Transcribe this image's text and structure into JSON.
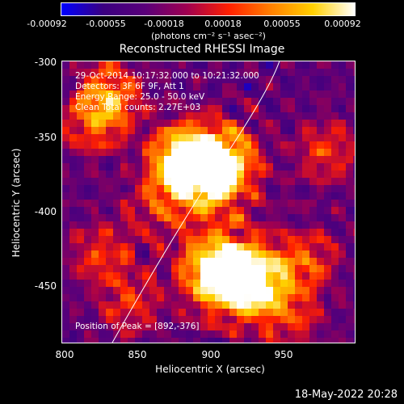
{
  "colorbar": {
    "ticks": [
      "-0.00092",
      "-0.00055",
      "-0.00018",
      "0.00018",
      "0.00055",
      "0.00092"
    ],
    "unit_label": "(photons cm⁻² s⁻¹ asec⁻²)",
    "colors": [
      "#0000ff",
      "#3b0080",
      "#5a007a",
      "#a00050",
      "#ff2000",
      "#ff8000",
      "#ffd000",
      "#ffffff"
    ]
  },
  "plot": {
    "title": "Reconstructed RHESSI Image",
    "ylabel": "Heliocentric Y (arcsec)",
    "xlabel": "Heliocentric X (arcsec)",
    "yticks": [
      "-300",
      "-350",
      "-400",
      "-450"
    ],
    "xticks": [
      "800",
      "850",
      "900",
      "950"
    ],
    "annotations": {
      "time": "29-Oct-2014 10:17:32.000 to 10:21:32.000",
      "detectors": "Detectors: 3F 6F 9F, Att 1",
      "energy": "Energy Range: 25.0 - 50.0 keV",
      "clean": "Clean    Total counts: 2.27E+03",
      "peak": "Position of Peak = [892,-376]"
    }
  },
  "footer": {
    "timestamp": "18-May-2022 20:28"
  }
}
